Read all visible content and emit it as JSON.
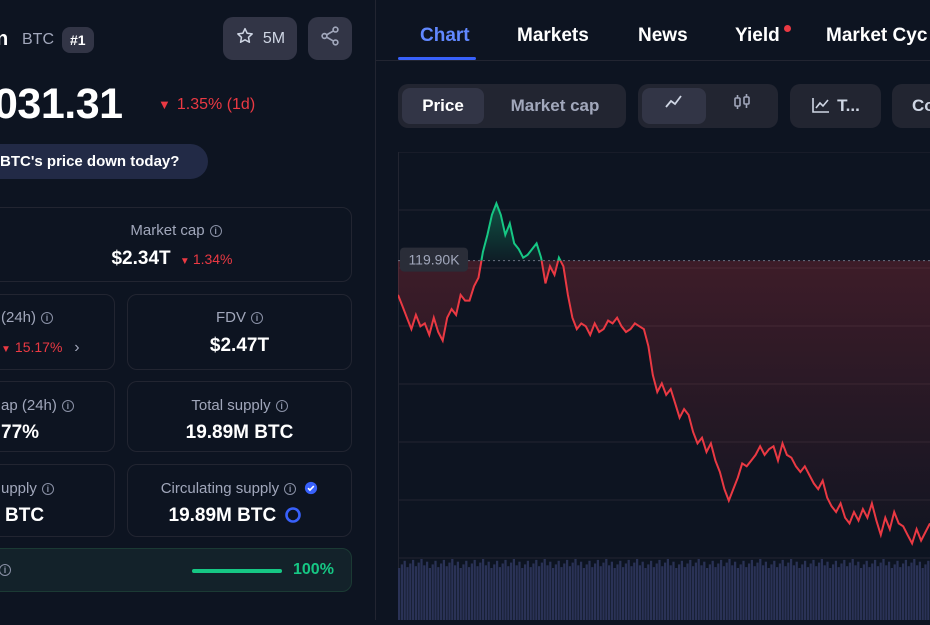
{
  "coin": {
    "name_fragment": "n",
    "symbol": "BTC",
    "rank": "#1",
    "watchlist_count": "5M",
    "price": "031.31",
    "change_1d": "1.35% (1d)",
    "price_question": "BTC's price down today?"
  },
  "stats": {
    "market_cap": {
      "label": "Market cap",
      "value": "$2.34T",
      "change": "1.34%"
    },
    "volume": {
      "label": "(24h)",
      "change": "15.17%"
    },
    "fdv": {
      "label": "FDV",
      "value": "$2.47T"
    },
    "vol_mktcap": {
      "label": "ap (24h)",
      "value": "77%"
    },
    "total_supply": {
      "label": "Total supply",
      "value": "19.89M BTC"
    },
    "max_supply": {
      "label": "upply",
      "value": "BTC"
    },
    "circulating_supply": {
      "label": "Circulating supply",
      "value": "19.89M BTC"
    },
    "progress": {
      "percent_label": "100%",
      "fill": 1.0
    }
  },
  "tabs": [
    {
      "label": "Chart",
      "active": true
    },
    {
      "label": "Markets"
    },
    {
      "label": "News"
    },
    {
      "label": "Yield"
    },
    {
      "label": "Market Cyc"
    }
  ],
  "chart_controls": {
    "price": "Price",
    "market_cap": "Market cap",
    "trading_view": "T...",
    "compare": "Co"
  },
  "colors": {
    "up": "#16c784",
    "down": "#ea3943",
    "accent": "#3861fb"
  },
  "chart_data": {
    "type": "line",
    "reference_label": "119.90K",
    "reference_value": 119900,
    "ylim": [
      114800,
      121800
    ],
    "grid": true,
    "values": [
      119300,
      119100,
      118900,
      118700,
      118950,
      118750,
      118800,
      118600,
      118900,
      118650,
      118500,
      118900,
      119050,
      118950,
      119300,
      119200,
      119200,
      119450,
      119600,
      120050,
      120350,
      120700,
      120900,
      120700,
      120350,
      120550,
      120200,
      120100,
      119950,
      120000,
      120100,
      120200,
      119950,
      119500,
      119800,
      119650,
      119950,
      119800,
      119300,
      118900,
      118700,
      118800,
      118750,
      118600,
      118800,
      118650,
      118700,
      118850,
      118800,
      118900,
      118750,
      118650,
      118700,
      118800,
      118750,
      118700,
      118400,
      117900,
      117600,
      117750,
      117550,
      117650,
      117400,
      117150,
      117300,
      117200,
      116900,
      116700,
      116800,
      116550,
      116700,
      116400,
      116200,
      115900,
      115700,
      115900,
      116100,
      116350,
      116300,
      116400,
      116500,
      116650,
      116500,
      116600,
      116650,
      116400,
      116700,
      116500,
      116450,
      116300,
      116200,
      116300,
      116150,
      116000,
      115900,
      116050,
      115750,
      115600,
      115500,
      115650,
      115400,
      115300,
      115500,
      115350,
      115550,
      115400,
      115650,
      115350,
      115100,
      115400,
      115200,
      115500,
      115300,
      115250,
      115100,
      114950,
      115200,
      115000,
      115150,
      115300
    ]
  }
}
